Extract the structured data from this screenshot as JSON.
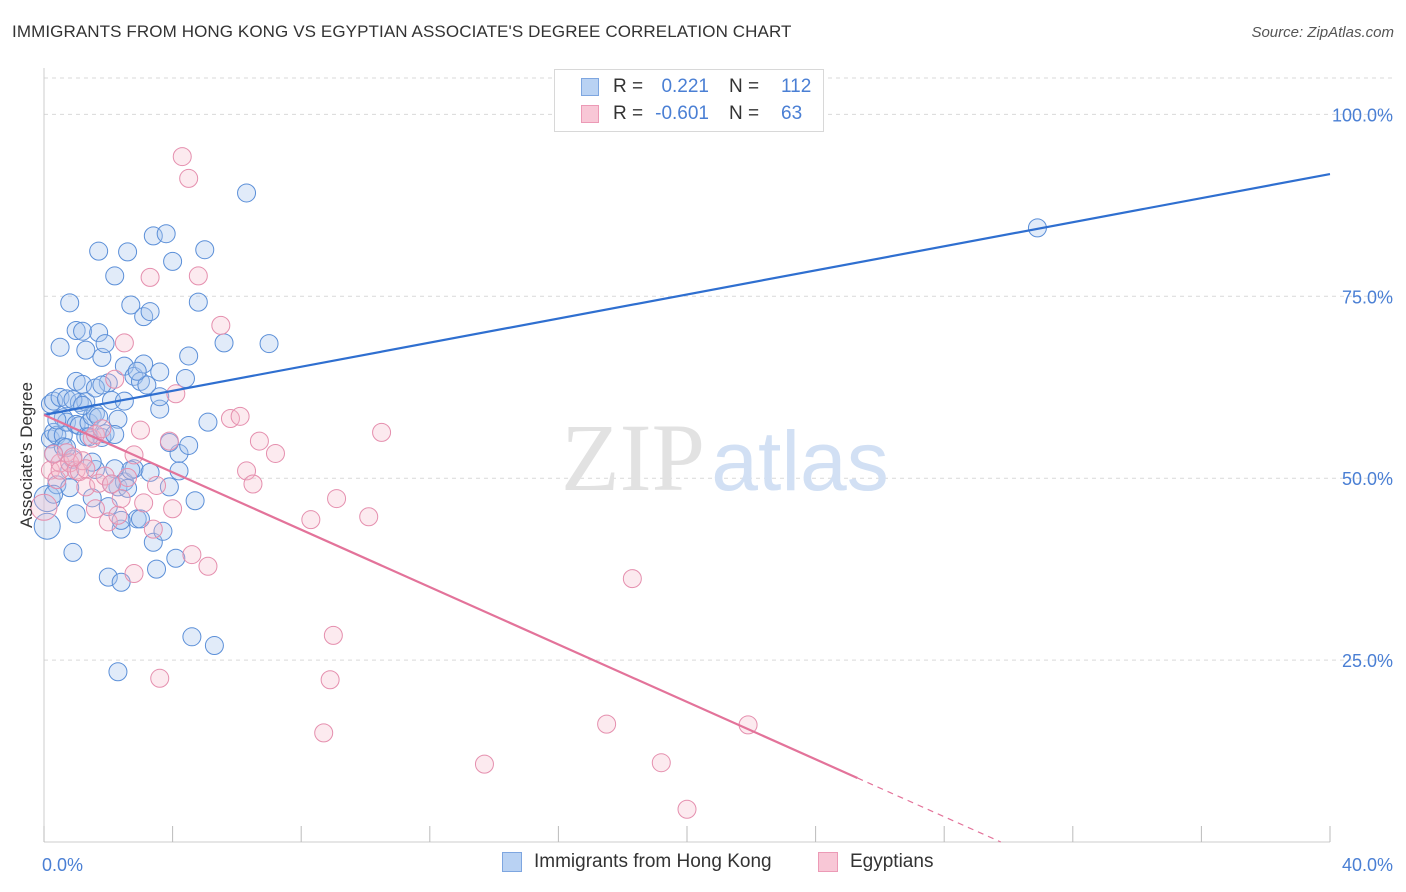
{
  "title": "IMMIGRANTS FROM HONG KONG VS EGYPTIAN ASSOCIATE'S DEGREE CORRELATION CHART",
  "source": "Source: ZipAtlas.com",
  "watermark": {
    "zip": "ZIP",
    "atlas": "atlas"
  },
  "colors": {
    "blue": "#4a7fd4",
    "blue_fill": "#a9c6ef",
    "blue_line": "#2f6fd0",
    "pink": "#e879a0",
    "pink_fill": "#f5b8cb",
    "pink_line": "#e3739a",
    "grid": "#d9d9d9"
  },
  "legend_top": {
    "rows": [
      {
        "r_label": "R =",
        "r_value": "0.221",
        "n_label": "N =",
        "n_value": "112"
      },
      {
        "r_label": "R =",
        "r_value": "-0.601",
        "n_label": "N =",
        "n_value": "63"
      }
    ]
  },
  "legend_bottom": {
    "items": [
      {
        "label": "Immigrants from Hong Kong"
      },
      {
        "label": "Egyptians"
      }
    ]
  },
  "chart_data": {
    "type": "scatter",
    "title": "IMMIGRANTS FROM HONG KONG VS EGYPTIAN ASSOCIATE'S DEGREE CORRELATION CHART",
    "xlabel": "",
    "ylabel": "Associate's Degree",
    "xlim": [
      0,
      40
    ],
    "ylim": [
      0,
      105
    ],
    "x_tick_labels": [
      "0.0%",
      "40.0%"
    ],
    "y_ticks": [
      25,
      50,
      75,
      100
    ],
    "y_tick_labels": [
      "25.0%",
      "50.0%",
      "75.0%",
      "100.0%"
    ],
    "grid": true,
    "legend_placement": "top-center and bottom",
    "series": [
      {
        "name": "Immigrants from Hong Kong",
        "color": "#4a7fd4",
        "trend": {
          "x": [
            0,
            40
          ],
          "y": [
            58.7,
            91.8
          ]
        },
        "points": [
          [
            0.1,
            43.4
          ],
          [
            0.1,
            47.2
          ],
          [
            0.2,
            55.4
          ],
          [
            0.2,
            60.2
          ],
          [
            0.3,
            60.6
          ],
          [
            0.3,
            56.3
          ],
          [
            0.3,
            53.4
          ],
          [
            0.4,
            49.1
          ],
          [
            0.4,
            55.9
          ],
          [
            0.5,
            61.1
          ],
          [
            0.5,
            68.0
          ],
          [
            0.6,
            55.9
          ],
          [
            0.6,
            54.3
          ],
          [
            0.6,
            58.3
          ],
          [
            0.7,
            60.9
          ],
          [
            0.7,
            57.7
          ],
          [
            0.8,
            74.1
          ],
          [
            0.8,
            51.1
          ],
          [
            0.9,
            52.6
          ],
          [
            0.9,
            39.8
          ],
          [
            1.0,
            63.3
          ],
          [
            1.0,
            70.3
          ],
          [
            1.0,
            57.4
          ],
          [
            1.1,
            60.4
          ],
          [
            1.1,
            57.2
          ],
          [
            1.2,
            62.9
          ],
          [
            1.2,
            70.2
          ],
          [
            1.3,
            55.7
          ],
          [
            1.3,
            67.6
          ],
          [
            1.3,
            60.5
          ],
          [
            1.4,
            57.6
          ],
          [
            1.5,
            47.3
          ],
          [
            1.5,
            58.5
          ],
          [
            1.6,
            51.2
          ],
          [
            1.6,
            58.9
          ],
          [
            1.7,
            58.4
          ],
          [
            1.7,
            70.0
          ],
          [
            1.7,
            81.2
          ],
          [
            1.8,
            66.6
          ],
          [
            1.8,
            55.6
          ],
          [
            1.9,
            68.5
          ],
          [
            2.0,
            63.1
          ],
          [
            2.0,
            46.1
          ],
          [
            2.0,
            36.4
          ],
          [
            2.1,
            60.7
          ],
          [
            2.2,
            51.3
          ],
          [
            2.2,
            77.8
          ],
          [
            2.3,
            58.1
          ],
          [
            2.3,
            48.8
          ],
          [
            2.3,
            23.4
          ],
          [
            2.4,
            43.0
          ],
          [
            2.4,
            35.7
          ],
          [
            2.5,
            49.5
          ],
          [
            2.5,
            60.6
          ],
          [
            2.5,
            65.4
          ],
          [
            2.6,
            81.1
          ],
          [
            2.7,
            73.8
          ],
          [
            2.8,
            64.0
          ],
          [
            2.8,
            51.3
          ],
          [
            2.9,
            44.4
          ],
          [
            3.0,
            63.3
          ],
          [
            3.1,
            65.7
          ],
          [
            3.1,
            72.2
          ],
          [
            3.2,
            62.8
          ],
          [
            3.3,
            72.9
          ],
          [
            3.4,
            83.3
          ],
          [
            3.4,
            41.2
          ],
          [
            3.5,
            37.5
          ],
          [
            3.6,
            59.5
          ],
          [
            3.6,
            64.6
          ],
          [
            3.6,
            61.2
          ],
          [
            3.7,
            42.7
          ],
          [
            3.8,
            83.6
          ],
          [
            3.9,
            48.8
          ],
          [
            4.0,
            79.8
          ],
          [
            4.1,
            39.0
          ],
          [
            4.2,
            53.4
          ],
          [
            4.2,
            51.0
          ],
          [
            4.4,
            63.7
          ],
          [
            4.5,
            54.5
          ],
          [
            4.5,
            66.8
          ],
          [
            4.6,
            28.2
          ],
          [
            4.7,
            46.9
          ],
          [
            4.8,
            74.2
          ],
          [
            5.0,
            81.4
          ],
          [
            5.1,
            57.7
          ],
          [
            5.3,
            27.0
          ],
          [
            5.6,
            68.6
          ],
          [
            6.3,
            89.2
          ],
          [
            7.0,
            68.5
          ],
          [
            30.9,
            84.4
          ],
          [
            1.4,
            55.7
          ],
          [
            2.6,
            48.6
          ],
          [
            1.9,
            56.1
          ],
          [
            3.0,
            44.4
          ],
          [
            0.9,
            60.8
          ],
          [
            1.6,
            62.4
          ],
          [
            2.9,
            64.7
          ],
          [
            0.7,
            54.2
          ],
          [
            1.2,
            60.0
          ],
          [
            2.1,
            49.2
          ],
          [
            3.3,
            50.8
          ],
          [
            1.8,
            62.8
          ],
          [
            0.4,
            58.0
          ],
          [
            2.4,
            44.2
          ],
          [
            0.8,
            48.7
          ],
          [
            1.5,
            52.2
          ],
          [
            3.9,
            54.9
          ],
          [
            2.2,
            56.0
          ],
          [
            1.0,
            45.1
          ],
          [
            0.3,
            47.8
          ],
          [
            2.7,
            51.1
          ]
        ]
      },
      {
        "name": "Egyptians",
        "color": "#e879a0",
        "trend": {
          "x": [
            0,
            25.3
          ],
          "y": [
            58.7,
            8.8
          ]
        },
        "points": [
          [
            0.0,
            46.0
          ],
          [
            0.2,
            51.1
          ],
          [
            0.4,
            49.8
          ],
          [
            0.5,
            52.1
          ],
          [
            0.5,
            51.1
          ],
          [
            0.7,
            53.5
          ],
          [
            0.8,
            52.1
          ],
          [
            1.0,
            51.1
          ],
          [
            1.1,
            50.9
          ],
          [
            1.2,
            52.4
          ],
          [
            1.3,
            48.8
          ],
          [
            1.3,
            51.3
          ],
          [
            1.5,
            55.5
          ],
          [
            1.6,
            56.0
          ],
          [
            1.7,
            49.3
          ],
          [
            1.8,
            56.8
          ],
          [
            1.9,
            50.3
          ],
          [
            2.0,
            44.0
          ],
          [
            2.1,
            49.2
          ],
          [
            2.2,
            63.6
          ],
          [
            2.3,
            44.9
          ],
          [
            2.5,
            68.6
          ],
          [
            2.6,
            50.1
          ],
          [
            2.8,
            36.9
          ],
          [
            2.8,
            53.2
          ],
          [
            3.0,
            56.6
          ],
          [
            3.1,
            46.6
          ],
          [
            3.3,
            77.6
          ],
          [
            3.4,
            43.0
          ],
          [
            3.5,
            49.0
          ],
          [
            3.6,
            22.5
          ],
          [
            3.9,
            55.1
          ],
          [
            4.0,
            45.8
          ],
          [
            4.1,
            61.6
          ],
          [
            4.3,
            94.2
          ],
          [
            4.5,
            91.2
          ],
          [
            4.6,
            39.5
          ],
          [
            4.8,
            77.8
          ],
          [
            5.1,
            37.9
          ],
          [
            5.5,
            71.0
          ],
          [
            5.8,
            58.2
          ],
          [
            6.1,
            58.5
          ],
          [
            6.3,
            51.0
          ],
          [
            6.5,
            49.2
          ],
          [
            6.7,
            55.1
          ],
          [
            7.2,
            53.4
          ],
          [
            8.3,
            44.3
          ],
          [
            8.7,
            15.0
          ],
          [
            8.9,
            22.3
          ],
          [
            9.0,
            28.4
          ],
          [
            9.1,
            47.2
          ],
          [
            10.1,
            44.7
          ],
          [
            10.5,
            56.3
          ],
          [
            13.7,
            10.7
          ],
          [
            17.5,
            16.2
          ],
          [
            18.3,
            36.2
          ],
          [
            19.2,
            10.9
          ],
          [
            20.0,
            4.5
          ],
          [
            21.9,
            16.1
          ],
          [
            0.3,
            53.3
          ],
          [
            1.6,
            45.8
          ],
          [
            0.9,
            52.9
          ],
          [
            2.4,
            47.2
          ]
        ]
      }
    ]
  }
}
